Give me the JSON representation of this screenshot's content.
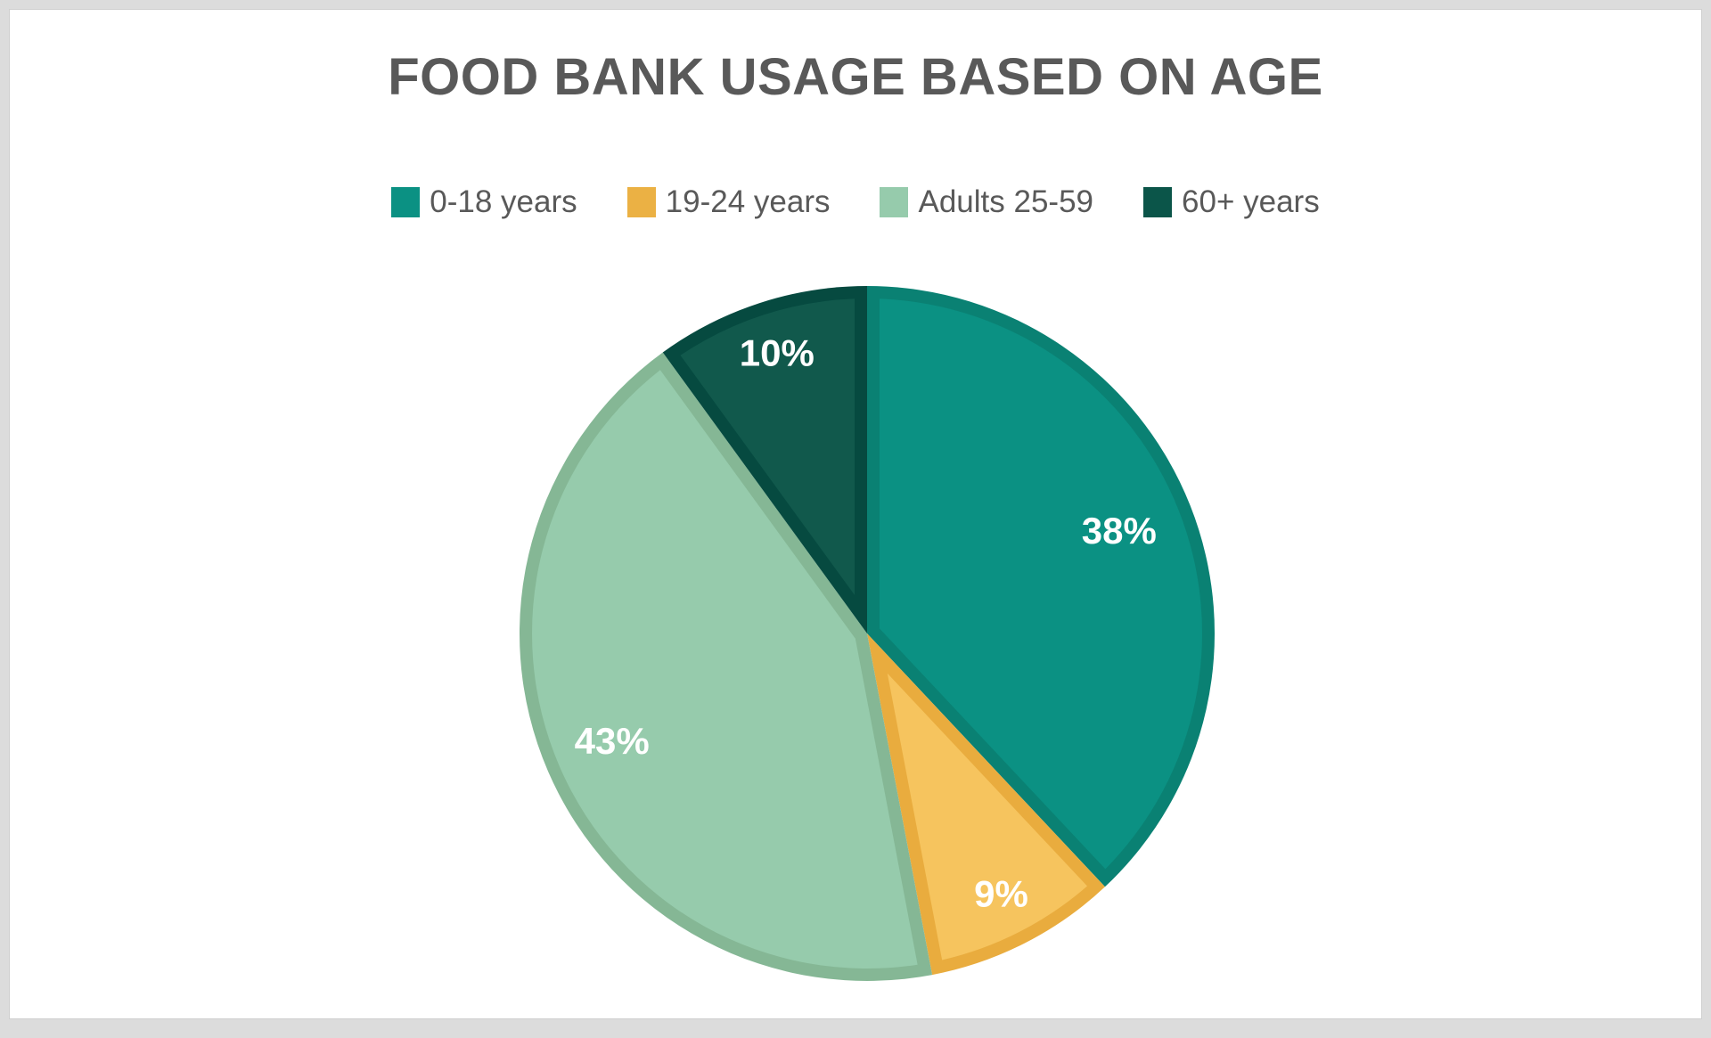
{
  "window": {
    "background": "#ffffff",
    "frame_color": "#dcdcdc"
  },
  "chart_data": {
    "type": "pie",
    "title": "FOOD BANK USAGE BASED ON AGE",
    "title_color": "#595959",
    "legend_position": "top",
    "legend_text_color": "#595959",
    "direction": "clockwise",
    "start_angle_deg": 0,
    "categories": [
      "0-18 years",
      "19-24 years",
      "Adults 25-59",
      "60+ years"
    ],
    "values": [
      38,
      9,
      43,
      10
    ],
    "unit": "%",
    "data_labels": [
      "38%",
      "9%",
      "43%",
      "10%"
    ],
    "data_label_color": "#ffffff",
    "series_colors": [
      "#0B9183",
      "#F6C45E",
      "#96CBAC",
      "#11594C"
    ],
    "slice_border_colors": [
      "#0A8173",
      "#E9AC3E",
      "#85B795",
      "#064A40"
    ],
    "legend_swatch_colors": [
      "#0B9183",
      "#EBB144",
      "#96CBAC",
      "#0B5549"
    ]
  }
}
